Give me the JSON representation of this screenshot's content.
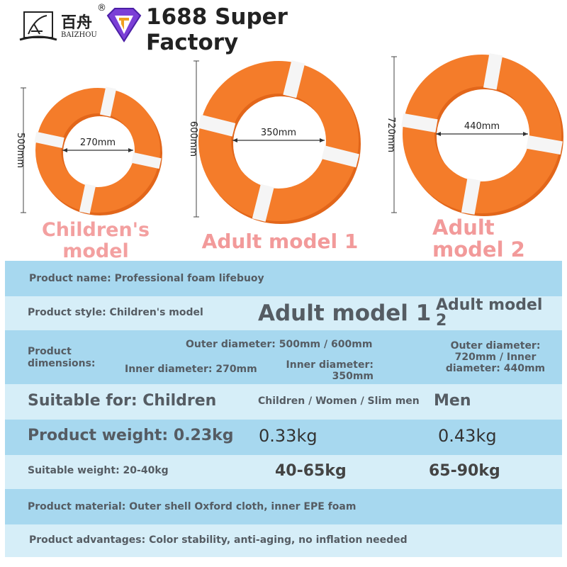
{
  "header": {
    "brand_cn": "百舟",
    "brand_reg": "®",
    "brand_en": "BAIZHOU",
    "title": "1688 Super Factory"
  },
  "rings": [
    {
      "name": "children",
      "outer": "500mm",
      "inner": "270mm",
      "label": "Children's model"
    },
    {
      "name": "adult1",
      "outer": "600mm",
      "inner": "350mm",
      "label": "Adult model 1"
    },
    {
      "name": "adult2",
      "outer": "720mm",
      "inner": "440mm",
      "label": "Adult model 2"
    }
  ],
  "colors": {
    "ring": "#f47c2a",
    "ring_shade": "#e2661a",
    "stripe": "#f5f5f5",
    "row_dark": "#a7d8ef",
    "row_light": "#d6eef8",
    "text": "#555c63",
    "label_pink": "#f3a0a0"
  },
  "table": {
    "product_name": "Product name: Professional foam lifebuoy",
    "product_style": "Product style: Children's model",
    "style_a1": "Adult model 1",
    "style_a2": "Adult model 2",
    "dimensions_label": "Product dimensions:",
    "outer_diameter": "Outer diameter: 500mm / 600mm",
    "inner_child": "Inner diameter: 270mm",
    "inner_a1": "Inner diameter: 350mm",
    "dims_a2": "Outer diameter: 720mm / Inner diameter: 440mm",
    "suitable_for": "Suitable for: Children",
    "suitable_a1": "Children / Women / Slim men",
    "suitable_a2": "Men",
    "weight": "Product weight: 0.23kg",
    "weight_a1": "0.33kg",
    "weight_a2": "0.43kg",
    "suitable_weight": "Suitable weight: 20-40kg",
    "sw_a1": "40-65kg",
    "sw_a2": "65-90kg",
    "material": "Product material: Outer shell Oxford cloth, inner EPE foam",
    "advantages": "Product advantages: Color stability, anti-aging, no inflation needed"
  }
}
